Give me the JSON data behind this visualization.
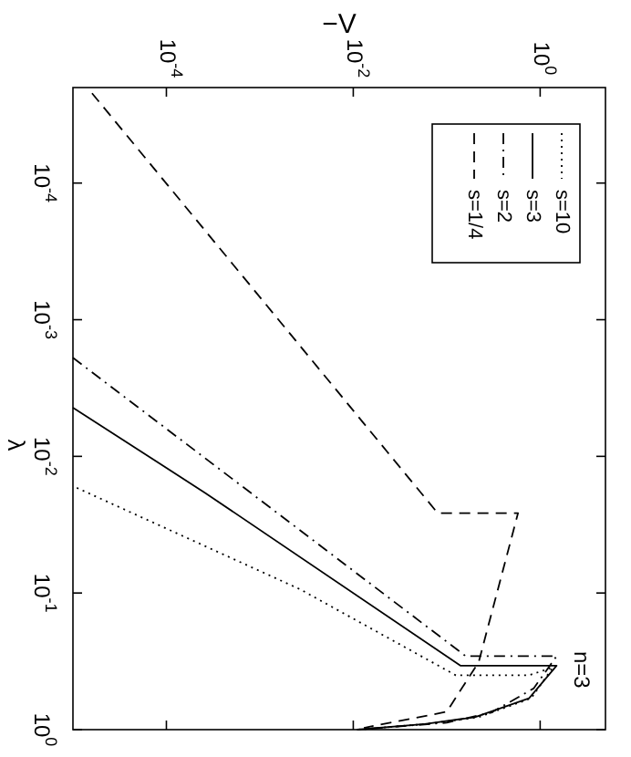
{
  "chart_data": {
    "type": "line",
    "xlabel": "−V",
    "ylabel": "λ",
    "log": "xy",
    "grid": false,
    "legend": "top right",
    "xlim": [
      1e-05,
      5
    ],
    "ylim": [
      1,
      2e-05
    ],
    "xticks": [
      {
        "value": 0.0001,
        "label": "10$^{-4}$"
      },
      {
        "value": 0.01,
        "label": "10$^{-2}$"
      },
      {
        "value": 1,
        "label": "10$^{0}$"
      }
    ],
    "yticks": [
      {
        "value": 0.0001,
        "label": "10$^{-4}$"
      },
      {
        "value": 0.001,
        "label": "10$^{-3}$"
      },
      {
        "value": 0.01,
        "label": "10$^{-2}$"
      },
      {
        "value": 0.1,
        "label": "10$^{-1}$"
      },
      {
        "value": 1,
        "label": "10$^{0}$"
      }
    ],
    "series": [
      {
        "name": "s=10",
        "color": "#000000",
        "line_style": "dotted",
        "values": [
          0.017,
          0.094,
          0.4,
          0.4,
          0.35,
          0.59,
          0.81,
          0.91,
          1
        ],
        "x": [
          1.1e-05,
          0.0027,
          0.125,
          0.76,
          1.37,
          0.8,
          0.22,
          0.06,
          0.011
        ]
      },
      {
        "name": "s=3",
        "color": "#000000",
        "line_style": "solid",
        "values": [
          0.0044,
          0.0185,
          0.34,
          0.34,
          0.59,
          0.81,
          0.91,
          1
        ],
        "x": [
          1e-05,
          0.00026,
          0.14,
          1.5,
          0.76,
          0.2,
          0.058,
          0.011
        ]
      },
      {
        "name": "s=2",
        "color": "#000000",
        "line_style": "dashdot",
        "values": [
          0.0019,
          0.29,
          0.29,
          0.5,
          0.75,
          0.89,
          1
        ],
        "x": [
          1e-05,
          0.16,
          1.5,
          0.85,
          0.3,
          0.1,
          0.011
        ]
      },
      {
        "name": "s=1/4",
        "color": "#000000",
        "line_style": "dashed",
        "values": [
          2.2e-05,
          0.026,
          0.026,
          0.32,
          0.74,
          0.97
        ],
        "x": [
          1.6e-05,
          0.08,
          0.58,
          0.22,
          0.1,
          0.013
        ]
      }
    ],
    "annotations": [
      "n=3"
    ]
  }
}
